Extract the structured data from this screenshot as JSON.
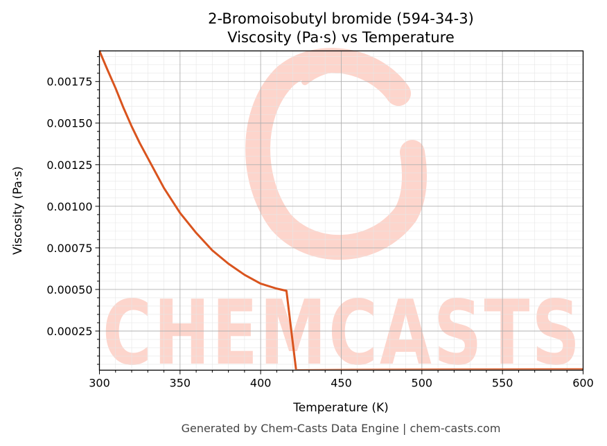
{
  "chart_data": {
    "type": "line",
    "title": "2-Bromoisobutyl bromide (594-34-3)",
    "subtitle": "Viscosity (Pa·s) vs Temperature",
    "xlabel": "Temperature (K)",
    "ylabel": "Viscosity (Pa·s)",
    "xlim": [
      300,
      600
    ],
    "ylim": [
      1.48e-05,
      0.001934
    ],
    "x_ticks": [
      "300",
      "350",
      "400",
      "450",
      "500",
      "550",
      "600"
    ],
    "y_ticks": [
      "0.00025",
      "0.00050",
      "0.00075",
      "0.00100",
      "0.00125",
      "0.00150",
      "0.00175"
    ],
    "grid": true,
    "series": [
      {
        "color": "#d9541e",
        "x": [
          300,
          305,
          310,
          315,
          320,
          325,
          330,
          340,
          350,
          360,
          370,
          380,
          390,
          400,
          410,
          416,
          422,
          430,
          450,
          500,
          550,
          600
        ],
        "y": [
          0.001934,
          0.00182,
          0.00171,
          0.00159,
          0.00148,
          0.00138,
          0.00129,
          0.00111,
          0.00096,
          0.00084,
          0.000735,
          0.000655,
          0.000588,
          0.000535,
          0.000505,
          0.000492,
          1.48e-05,
          1.55e-05,
          1.65e-05,
          1.8e-05,
          1.9e-05,
          2e-05
        ]
      }
    ]
  },
  "watermark": {
    "text": "CHEMCASTS",
    "color": "#fdd5cc"
  },
  "footer": "Generated by Chem-Casts Data Engine | chem-casts.com"
}
